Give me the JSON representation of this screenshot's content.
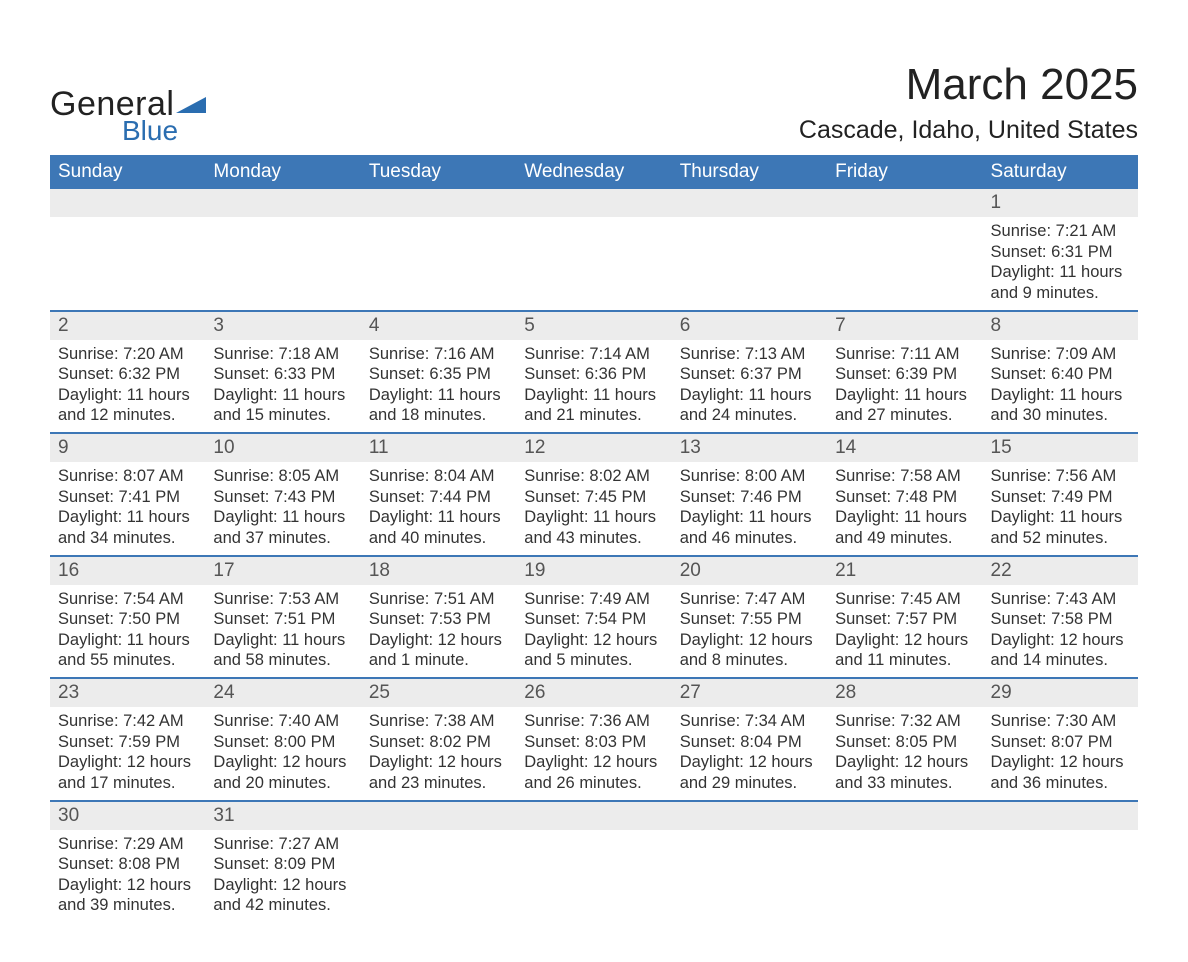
{
  "brand": {
    "word1": "General",
    "word2": "Blue"
  },
  "title": "March 2025",
  "location": "Cascade, Idaho, United States",
  "colors": {
    "header_bg": "#3d77b6",
    "row_gray": "#ececec",
    "border_blue": "#3d77b6",
    "logo_blue": "#2a6db0",
    "text": "#333333",
    "background": "#ffffff"
  },
  "typography": {
    "title_fontsize": 44,
    "location_fontsize": 25,
    "header_fontsize": 19,
    "daynum_fontsize": 19,
    "body_fontsize": 16.5,
    "font_family": "Arial"
  },
  "weekday_headers": [
    "Sunday",
    "Monday",
    "Tuesday",
    "Wednesday",
    "Thursday",
    "Friday",
    "Saturday"
  ],
  "weeks": [
    [
      null,
      null,
      null,
      null,
      null,
      null,
      {
        "day": "1",
        "sunrise": "7:21 AM",
        "sunset": "6:31 PM",
        "daylight": "11 hours and 9 minutes."
      }
    ],
    [
      {
        "day": "2",
        "sunrise": "7:20 AM",
        "sunset": "6:32 PM",
        "daylight": "11 hours and 12 minutes."
      },
      {
        "day": "3",
        "sunrise": "7:18 AM",
        "sunset": "6:33 PM",
        "daylight": "11 hours and 15 minutes."
      },
      {
        "day": "4",
        "sunrise": "7:16 AM",
        "sunset": "6:35 PM",
        "daylight": "11 hours and 18 minutes."
      },
      {
        "day": "5",
        "sunrise": "7:14 AM",
        "sunset": "6:36 PM",
        "daylight": "11 hours and 21 minutes."
      },
      {
        "day": "6",
        "sunrise": "7:13 AM",
        "sunset": "6:37 PM",
        "daylight": "11 hours and 24 minutes."
      },
      {
        "day": "7",
        "sunrise": "7:11 AM",
        "sunset": "6:39 PM",
        "daylight": "11 hours and 27 minutes."
      },
      {
        "day": "8",
        "sunrise": "7:09 AM",
        "sunset": "6:40 PM",
        "daylight": "11 hours and 30 minutes."
      }
    ],
    [
      {
        "day": "9",
        "sunrise": "8:07 AM",
        "sunset": "7:41 PM",
        "daylight": "11 hours and 34 minutes."
      },
      {
        "day": "10",
        "sunrise": "8:05 AM",
        "sunset": "7:43 PM",
        "daylight": "11 hours and 37 minutes."
      },
      {
        "day": "11",
        "sunrise": "8:04 AM",
        "sunset": "7:44 PM",
        "daylight": "11 hours and 40 minutes."
      },
      {
        "day": "12",
        "sunrise": "8:02 AM",
        "sunset": "7:45 PM",
        "daylight": "11 hours and 43 minutes."
      },
      {
        "day": "13",
        "sunrise": "8:00 AM",
        "sunset": "7:46 PM",
        "daylight": "11 hours and 46 minutes."
      },
      {
        "day": "14",
        "sunrise": "7:58 AM",
        "sunset": "7:48 PM",
        "daylight": "11 hours and 49 minutes."
      },
      {
        "day": "15",
        "sunrise": "7:56 AM",
        "sunset": "7:49 PM",
        "daylight": "11 hours and 52 minutes."
      }
    ],
    [
      {
        "day": "16",
        "sunrise": "7:54 AM",
        "sunset": "7:50 PM",
        "daylight": "11 hours and 55 minutes."
      },
      {
        "day": "17",
        "sunrise": "7:53 AM",
        "sunset": "7:51 PM",
        "daylight": "11 hours and 58 minutes."
      },
      {
        "day": "18",
        "sunrise": "7:51 AM",
        "sunset": "7:53 PM",
        "daylight": "12 hours and 1 minute."
      },
      {
        "day": "19",
        "sunrise": "7:49 AM",
        "sunset": "7:54 PM",
        "daylight": "12 hours and 5 minutes."
      },
      {
        "day": "20",
        "sunrise": "7:47 AM",
        "sunset": "7:55 PM",
        "daylight": "12 hours and 8 minutes."
      },
      {
        "day": "21",
        "sunrise": "7:45 AM",
        "sunset": "7:57 PM",
        "daylight": "12 hours and 11 minutes."
      },
      {
        "day": "22",
        "sunrise": "7:43 AM",
        "sunset": "7:58 PM",
        "daylight": "12 hours and 14 minutes."
      }
    ],
    [
      {
        "day": "23",
        "sunrise": "7:42 AM",
        "sunset": "7:59 PM",
        "daylight": "12 hours and 17 minutes."
      },
      {
        "day": "24",
        "sunrise": "7:40 AM",
        "sunset": "8:00 PM",
        "daylight": "12 hours and 20 minutes."
      },
      {
        "day": "25",
        "sunrise": "7:38 AM",
        "sunset": "8:02 PM",
        "daylight": "12 hours and 23 minutes."
      },
      {
        "day": "26",
        "sunrise": "7:36 AM",
        "sunset": "8:03 PM",
        "daylight": "12 hours and 26 minutes."
      },
      {
        "day": "27",
        "sunrise": "7:34 AM",
        "sunset": "8:04 PM",
        "daylight": "12 hours and 29 minutes."
      },
      {
        "day": "28",
        "sunrise": "7:32 AM",
        "sunset": "8:05 PM",
        "daylight": "12 hours and 33 minutes."
      },
      {
        "day": "29",
        "sunrise": "7:30 AM",
        "sunset": "8:07 PM",
        "daylight": "12 hours and 36 minutes."
      }
    ],
    [
      {
        "day": "30",
        "sunrise": "7:29 AM",
        "sunset": "8:08 PM",
        "daylight": "12 hours and 39 minutes."
      },
      {
        "day": "31",
        "sunrise": "7:27 AM",
        "sunset": "8:09 PM",
        "daylight": "12 hours and 42 minutes."
      },
      null,
      null,
      null,
      null,
      null
    ]
  ],
  "labels": {
    "sunrise": "Sunrise:",
    "sunset": "Sunset:",
    "daylight": "Daylight:"
  }
}
